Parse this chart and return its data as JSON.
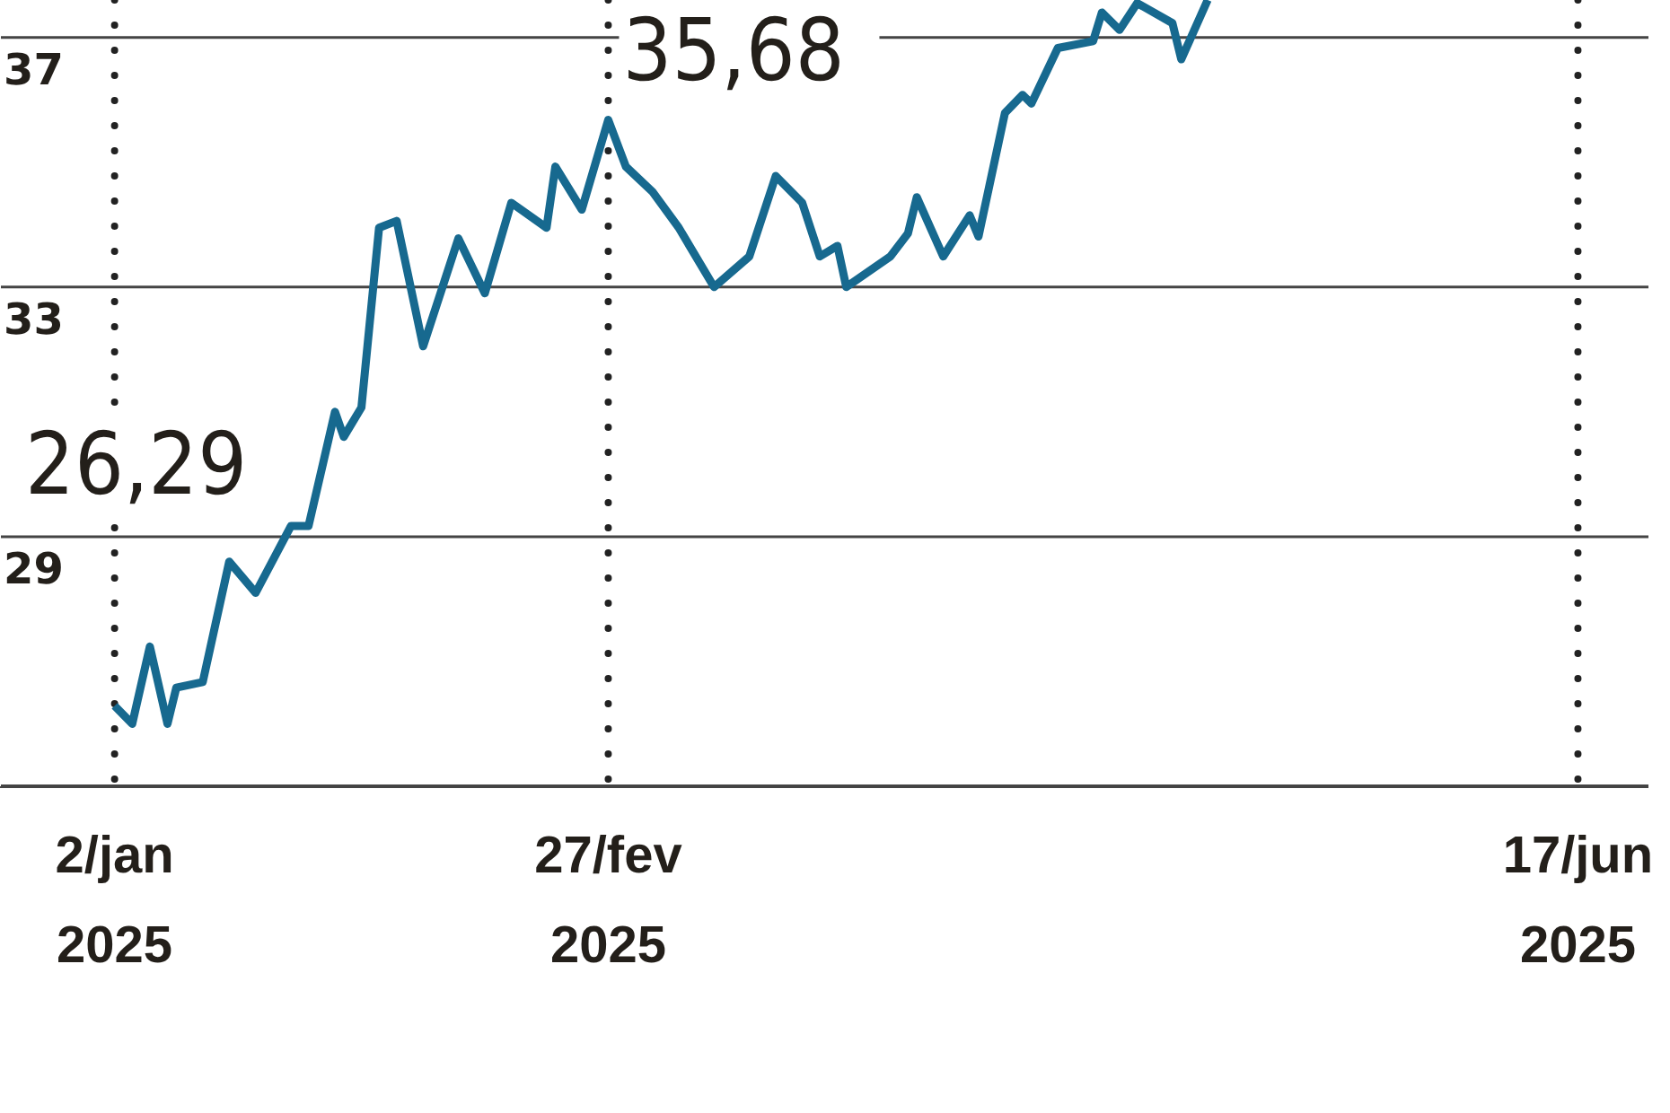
{
  "chart_data": {
    "type": "line",
    "x": [
      "2025-01-02",
      "2025-01-04",
      "2025-01-06",
      "2025-01-08",
      "2025-01-09",
      "2025-01-12",
      "2025-01-15",
      "2025-01-18",
      "2025-01-22",
      "2025-01-24",
      "2025-01-27",
      "2025-01-28",
      "2025-01-30",
      "2025-02-01",
      "2025-02-03",
      "2025-02-06",
      "2025-02-10",
      "2025-02-13",
      "2025-02-16",
      "2025-02-20",
      "2025-02-21",
      "2025-02-24",
      "2025-02-27",
      "2025-03-01",
      "2025-03-04",
      "2025-03-07",
      "2025-03-11",
      "2025-03-15",
      "2025-03-18",
      "2025-03-21",
      "2025-03-23",
      "2025-03-25",
      "2025-03-26",
      "2025-03-31",
      "2025-04-02",
      "2025-04-03",
      "2025-04-06",
      "2025-04-09",
      "2025-04-10",
      "2025-04-13",
      "2025-04-15",
      "2025-04-16",
      "2025-04-19",
      "2025-04-23",
      "2025-04-24",
      "2025-04-26",
      "2025-04-28",
      "2025-05-02",
      "2025-05-03",
      "2025-05-06"
    ],
    "series": [
      {
        "color": "#17698f",
        "values": [
          26.29,
          26.0,
          27.24,
          26.0,
          26.58,
          26.67,
          28.6,
          28.1,
          29.17,
          29.17,
          31.0,
          30.6,
          31.07,
          33.95,
          34.06,
          32.05,
          33.78,
          32.9,
          34.35,
          33.95,
          34.93,
          34.24,
          35.68,
          34.93,
          34.53,
          33.95,
          33.0,
          33.49,
          34.78,
          34.35,
          33.49,
          33.66,
          33.0,
          33.49,
          33.86,
          34.44,
          33.49,
          34.15,
          33.81,
          35.79,
          36.08,
          35.94,
          36.83,
          36.94,
          37.4,
          37.12,
          37.55,
          37.23,
          36.65,
          37.6
        ]
      }
    ],
    "xlim": [
      "2024-12-20",
      "2025-06-25"
    ],
    "xticks": [
      {
        "value": "2025-01-02",
        "label": "2/jan\n2025"
      },
      {
        "value": "2025-02-27",
        "label": "27/fev\n2025"
      },
      {
        "value": "2025-06-17",
        "label": "17/jun\n2025"
      }
    ],
    "ylim": [
      25,
      37.6
    ],
    "yticks": [
      {
        "value": 25,
        "label": null
      },
      29,
      33,
      37
    ],
    "grid": true,
    "marker": "none",
    "line_style": "solid",
    "annotations": [
      {
        "text": "26,29",
        "x": "2025-01-02",
        "y": 26.29
      },
      {
        "text": "35,68",
        "x": "2025-02-27",
        "y": 35.68
      }
    ]
  }
}
